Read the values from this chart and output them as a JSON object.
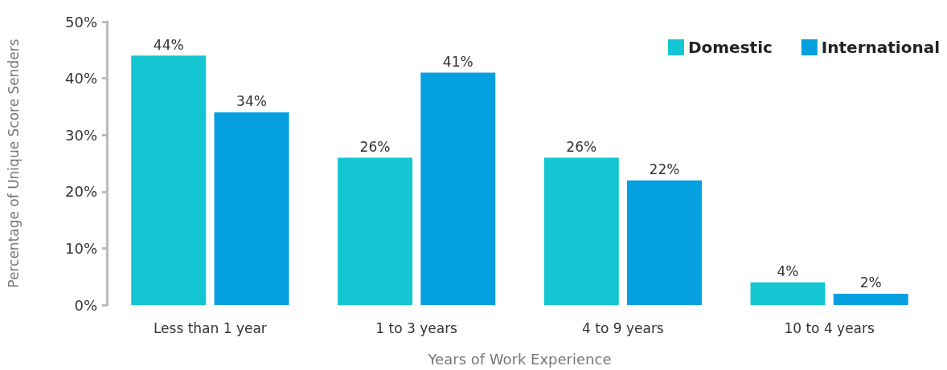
{
  "chart_data": {
    "type": "bar",
    "xlabel": "Years of Work Experience",
    "ylabel": "Percentage of Unique Score Senders",
    "categories": [
      "Less than 1 year",
      "1 to 3 years",
      "4 to 9 years",
      "10 to 4 years"
    ],
    "series": [
      {
        "name": "Domestic",
        "color": "#13c6d1",
        "values": [
          44,
          26,
          26,
          4
        ],
        "value_labels": [
          "44%",
          "26%",
          "26%",
          "4%"
        ]
      },
      {
        "name": "International",
        "color": "#04a0e0",
        "values": [
          34,
          41,
          22,
          2
        ],
        "value_labels": [
          "34%",
          "41%",
          "22%",
          "2%"
        ]
      }
    ],
    "ylim": [
      0,
      50
    ],
    "yticks": [
      {
        "value": 0,
        "label": "0%"
      },
      {
        "value": 10,
        "label": "10%"
      },
      {
        "value": 20,
        "label": "20%"
      },
      {
        "value": 30,
        "label": "30%"
      },
      {
        "value": 40,
        "label": "40%"
      },
      {
        "value": 50,
        "label": "50%"
      }
    ],
    "grid": false,
    "legend": "top right"
  }
}
